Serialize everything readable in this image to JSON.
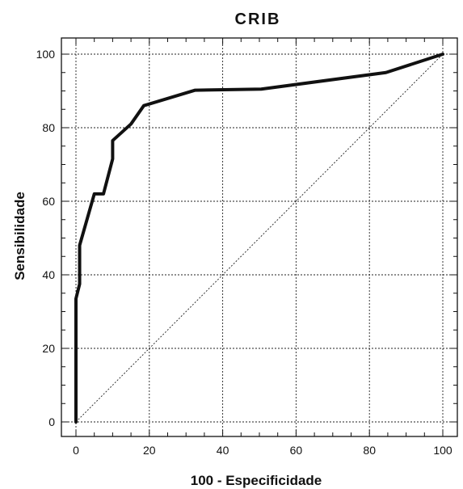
{
  "chart_data": {
    "type": "line",
    "title": "CRIB",
    "xlabel": "100 - Especificidade",
    "ylabel": "Sensibilidade",
    "xlim": [
      0,
      100
    ],
    "ylim": [
      0,
      100
    ],
    "x_ticks": [
      "0",
      "20",
      "40",
      "60",
      "80",
      "100"
    ],
    "y_ticks": [
      "0",
      "20",
      "40",
      "60",
      "80",
      "100"
    ],
    "grid": true,
    "series": [
      {
        "x": [
          0,
          0,
          1,
          1,
          5,
          7.5,
          10,
          10,
          15,
          18.5,
          32.5,
          50.5,
          84.5,
          100
        ],
        "y": [
          0,
          33.5,
          37.5,
          48,
          62,
          62,
          71.5,
          76.5,
          81,
          86,
          90.2,
          90.5,
          95,
          100
        ]
      },
      {
        "x": [
          0,
          100
        ],
        "y": [
          0,
          100
        ],
        "style": "dotted"
      }
    ]
  }
}
